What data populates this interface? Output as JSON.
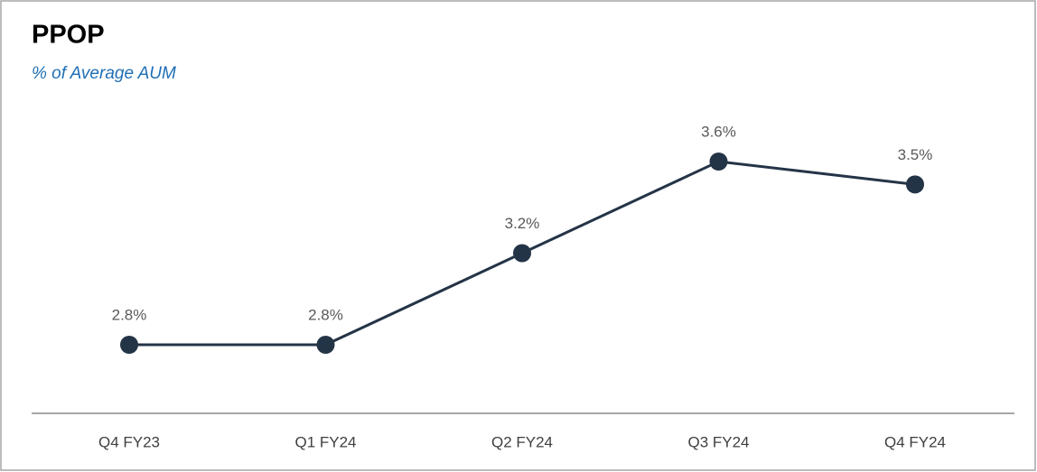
{
  "chart_data": {
    "type": "line",
    "title": "PPOP",
    "subtitle": "% of Average AUM",
    "categories": [
      "Q4 FY23",
      "Q1 FY24",
      "Q2 FY24",
      "Q3 FY24",
      "Q4 FY24"
    ],
    "values": [
      2.8,
      2.8,
      3.2,
      3.6,
      3.5
    ],
    "value_labels": [
      "2.8%",
      "2.8%",
      "3.2%",
      "3.6%",
      "3.5%"
    ],
    "color": "#243447",
    "grid": false
  }
}
